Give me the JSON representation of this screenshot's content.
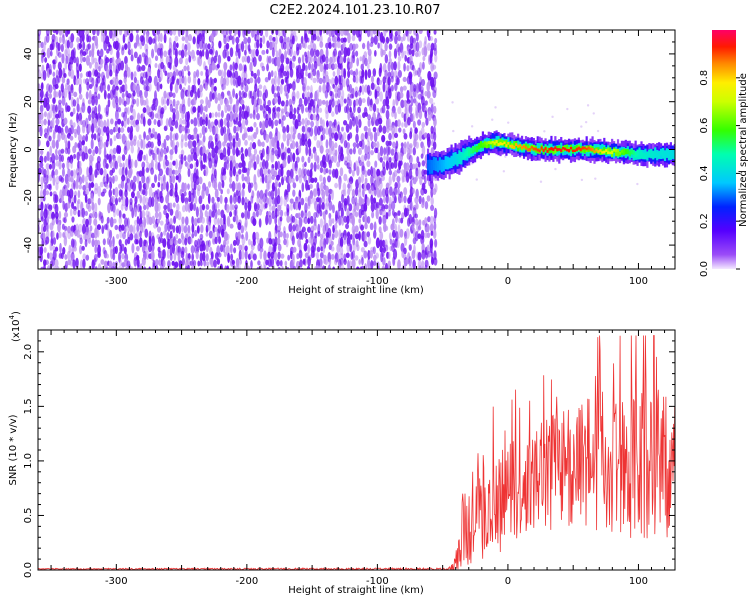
{
  "title": "C2E2.2024.101.23.10.R07",
  "colors": {
    "spectrogram_noise": "#6e10f0",
    "spectrogram_noise_light": "#b98af2",
    "snr_line": "#ee3333",
    "axis": "#000000"
  },
  "chart_data": [
    {
      "type": "heatmap",
      "title": "C2E2.2024.101.23.10.R07",
      "xlabel": "Height of straight line (km)",
      "ylabel": "Frequency (Hz)",
      "xlim": [
        -360,
        128
      ],
      "ylim": [
        -50,
        50
      ],
      "xticks": [
        -300,
        -200,
        -100,
        0,
        100
      ],
      "yticks": [
        -40,
        -20,
        0,
        20,
        40
      ],
      "x_tick_labels": [
        "-300",
        "-200",
        "-100",
        "0",
        "100"
      ],
      "y_tick_labels": [
        "-40",
        "-20",
        "0",
        "20",
        "40"
      ],
      "noise_region": {
        "x_from": -360,
        "x_to": -55,
        "amplitude": 0.15
      },
      "echo_trace": {
        "x": [
          -62,
          -50,
          -40,
          -30,
          -20,
          -10,
          0,
          10,
          20,
          40,
          60,
          80,
          100,
          128
        ],
        "frequency": [
          -7,
          -6,
          -4,
          -1,
          2,
          3,
          2,
          1,
          0,
          0,
          0,
          -1,
          -2,
          -2
        ],
        "amplitude": [
          0.3,
          0.35,
          0.4,
          0.5,
          0.6,
          0.75,
          0.8,
          0.85,
          0.9,
          0.95,
          0.9,
          0.7,
          0.45,
          0.4
        ]
      },
      "colorbar": {
        "label": "Normalized spectral amplitude",
        "range": [
          0.0,
          1.0
        ],
        "ticks": [
          0.0,
          0.2,
          0.4,
          0.6,
          0.8
        ],
        "tick_labels": [
          "0.0",
          "0.2",
          "0.4",
          "0.6",
          "0.8"
        ]
      }
    },
    {
      "type": "line",
      "xlabel": "Height of straight line (km)",
      "ylabel": "SNR (10 * v/v)",
      "y_multiplier_label": "(x10",
      "y_multiplier_exp": "4",
      "y_multiplier_close": ")",
      "xlim": [
        -360,
        128
      ],
      "ylim": [
        0,
        2.2
      ],
      "xticks": [
        -300,
        -200,
        -100,
        0,
        100
      ],
      "yticks": [
        0.0,
        0.5,
        1.0,
        1.5,
        2.0
      ],
      "x_tick_labels": [
        "-300",
        "-200",
        "-100",
        "0",
        "100"
      ],
      "y_tick_labels": [
        "0.0",
        "0.5",
        "1.0",
        "1.5",
        "2.0"
      ],
      "series": [
        {
          "color": "#ee3333",
          "envelope_x": [
            -360,
            -45,
            -40,
            -36,
            -30,
            -20,
            -10,
            0,
            20,
            40,
            60,
            80,
            100,
            128
          ],
          "envelope_mean": [
            0.01,
            0.01,
            0.05,
            0.35,
            0.45,
            0.5,
            0.6,
            0.7,
            0.8,
            0.95,
            1.0,
            1.0,
            1.0,
            1.0
          ],
          "envelope_spread": [
            0.005,
            0.01,
            0.1,
            0.35,
            0.4,
            0.45,
            0.5,
            0.45,
            0.5,
            0.55,
            0.6,
            0.7,
            0.75,
            0.7
          ],
          "peak": 2.15
        }
      ]
    }
  ]
}
